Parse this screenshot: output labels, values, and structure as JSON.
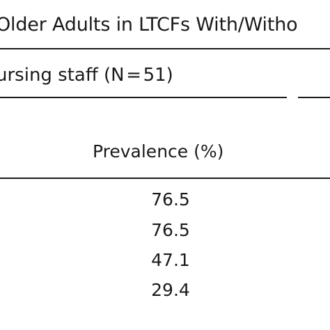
{
  "table": {
    "title": "Older Adults in LTCFs With/Witho",
    "group_header": "ursing staff (N = 51)",
    "column_header": "Prevalence (%)",
    "rows": [
      {
        "prevalence": "76.5"
      },
      {
        "prevalence": "76.5"
      },
      {
        "prevalence": "47.1"
      },
      {
        "prevalence": "29.4"
      }
    ]
  }
}
